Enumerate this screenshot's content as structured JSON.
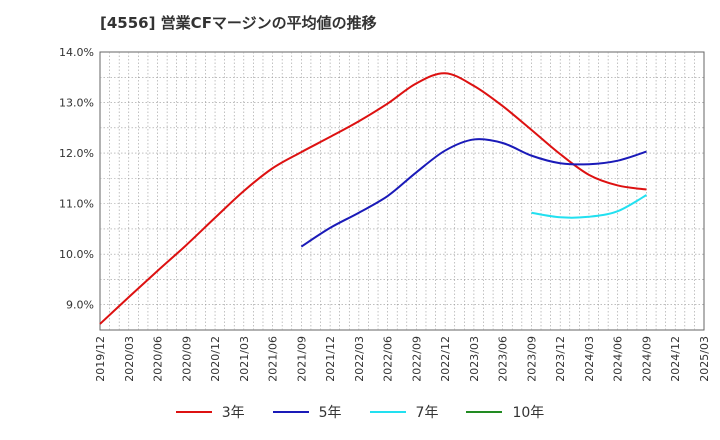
{
  "chart_title": "[4556]  営業CFマージンの平均値の推移",
  "chart_data": {
    "type": "line",
    "title": "[4556]  営業CFマージンの平均値の推移",
    "xlabel": "",
    "ylabel": "",
    "x_ticks": [
      "2019/12",
      "2020/03",
      "2020/06",
      "2020/09",
      "2020/12",
      "2021/03",
      "2021/06",
      "2021/09",
      "2021/12",
      "2022/03",
      "2022/06",
      "2022/09",
      "2022/12",
      "2023/03",
      "2023/06",
      "2023/09",
      "2023/12",
      "2024/03",
      "2024/06",
      "2024/09",
      "2024/12",
      "2025/03"
    ],
    "y_ticks": [
      "9.0%",
      "10.0%",
      "11.0%",
      "12.0%",
      "13.0%",
      "14.0%"
    ],
    "y_tick_values": [
      9.0,
      10.0,
      11.0,
      12.0,
      13.0,
      14.0
    ],
    "ylim": [
      8.5,
      14.0
    ],
    "grid": true,
    "legend_position": "bottom",
    "series": [
      {
        "name": "3年",
        "color": "#dd1111",
        "x": [
          "2019/12",
          "2020/03",
          "2020/06",
          "2020/09",
          "2020/12",
          "2021/03",
          "2021/06",
          "2021/09",
          "2021/12",
          "2022/03",
          "2022/06",
          "2022/09",
          "2022/12",
          "2023/03",
          "2023/06",
          "2023/09",
          "2023/12",
          "2024/03",
          "2024/06",
          "2024/09"
        ],
        "values": [
          8.62,
          9.15,
          9.67,
          10.18,
          10.72,
          11.25,
          11.7,
          12.02,
          12.32,
          12.63,
          12.98,
          13.38,
          13.58,
          13.33,
          12.93,
          12.46,
          11.98,
          11.57,
          11.36,
          11.28
        ]
      },
      {
        "name": "5年",
        "color": "#1a1ab8",
        "x": [
          "2021/09",
          "2021/12",
          "2022/03",
          "2022/06",
          "2022/09",
          "2022/12",
          "2023/03",
          "2023/06",
          "2023/09",
          "2023/12",
          "2024/03",
          "2024/06",
          "2024/09"
        ],
        "values": [
          10.15,
          10.52,
          10.82,
          11.15,
          11.62,
          12.05,
          12.27,
          12.2,
          11.95,
          11.8,
          11.78,
          11.85,
          12.03
        ]
      },
      {
        "name": "7年",
        "color": "#22e0f0",
        "x": [
          "2023/09",
          "2023/12",
          "2024/03",
          "2024/06",
          "2024/09"
        ],
        "values": [
          10.82,
          10.73,
          10.74,
          10.85,
          11.17
        ]
      },
      {
        "name": "10年",
        "color": "#228b22",
        "x": [],
        "values": []
      }
    ]
  }
}
